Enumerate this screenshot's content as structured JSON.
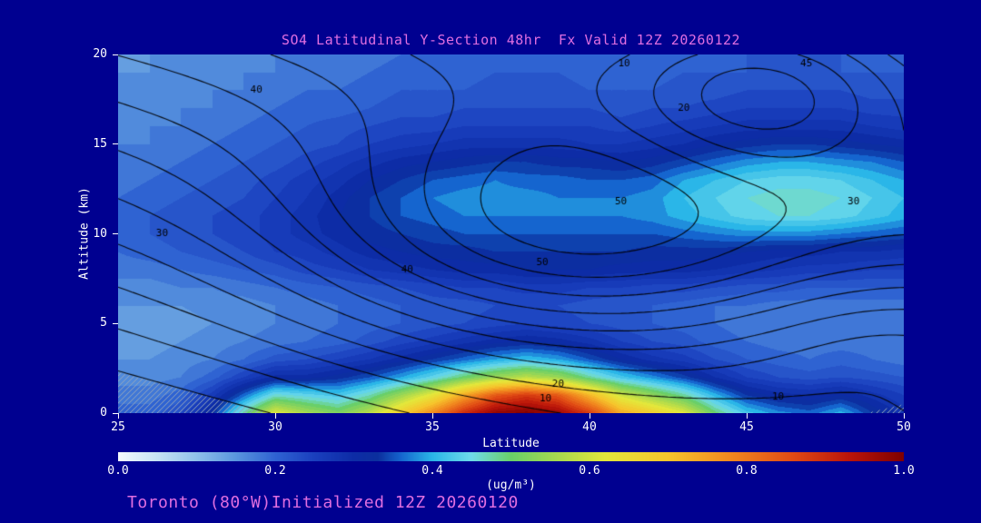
{
  "title": "SO4 Latitudinal Y-Section 48hr  Fx Valid 12Z 20260122",
  "footer": "Toronto (80°W)Initialized 12Z 20260120",
  "colors": {
    "background": "#000090",
    "title_text": "#e06ee0",
    "axis_text": "#ffffff",
    "contour_line": "#000000",
    "terrain_hatch": "#97a8bc"
  },
  "axes": {
    "x": {
      "label": "Latitude",
      "min": 25,
      "max": 50,
      "ticks": [
        25,
        30,
        35,
        40,
        45,
        50
      ]
    },
    "y": {
      "label": "Altitude (km)",
      "min": 0,
      "max": 20,
      "ticks": [
        0,
        5,
        10,
        15,
        20
      ]
    }
  },
  "colorbar": {
    "label": "(ug/m³)",
    "min": 0.0,
    "max": 1.0,
    "ticks": [
      "0.0",
      "0.2",
      "0.4",
      "0.6",
      "0.8",
      "1.0"
    ],
    "stops": [
      [
        0.0,
        "#f4fafe"
      ],
      [
        0.05,
        "#c6e2f4"
      ],
      [
        0.1,
        "#8fc1ea"
      ],
      [
        0.15,
        "#5a95de"
      ],
      [
        0.2,
        "#2f63d2"
      ],
      [
        0.25,
        "#1a3fbe"
      ],
      [
        0.3,
        "#0d2ca6"
      ],
      [
        0.33,
        "#0b2f9e"
      ],
      [
        0.36,
        "#1565cf"
      ],
      [
        0.4,
        "#2ab6e8"
      ],
      [
        0.45,
        "#6fdbea"
      ],
      [
        0.5,
        "#69cf69"
      ],
      [
        0.56,
        "#a7d94f"
      ],
      [
        0.62,
        "#e3e73b"
      ],
      [
        0.7,
        "#f6c52c"
      ],
      [
        0.78,
        "#f1881f"
      ],
      [
        0.86,
        "#e04914"
      ],
      [
        0.93,
        "#bb150a"
      ],
      [
        1.0,
        "#7f0000"
      ]
    ]
  },
  "terrain": {
    "polygons": [
      [
        [
          25,
          2.3
        ],
        [
          25,
          0
        ],
        [
          29.8,
          0
        ]
      ],
      [
        [
          48.8,
          0
        ],
        [
          50,
          0
        ],
        [
          50,
          0.5
        ]
      ]
    ]
  },
  "chart_data": {
    "type": "heatmap",
    "title": "SO4 Latitudinal Y-Section 48hr  Fx Valid 12Z 20260122",
    "xlabel": "Latitude",
    "ylabel": "Altitude (km)",
    "units": "ug/m3",
    "value_range": [
      0.0,
      1.0
    ],
    "x_lat": [
      25,
      26,
      27,
      28,
      29,
      30,
      31,
      32,
      33,
      34,
      35,
      36,
      37,
      38,
      39,
      40,
      41,
      42,
      43,
      44,
      45,
      46,
      47,
      48,
      49,
      50
    ],
    "y_alt_km": [
      0,
      1,
      2,
      3,
      4,
      5,
      6,
      7,
      8,
      9,
      10,
      11,
      12,
      13,
      14,
      15,
      16,
      17,
      18,
      19,
      20
    ],
    "so4_ug_m3": [
      [
        0.2,
        0.2,
        0.23,
        0.32,
        0.48,
        0.62,
        0.56,
        0.52,
        0.58,
        0.68,
        0.78,
        0.9,
        0.98,
        1.0,
        0.97,
        0.88,
        0.74,
        0.68,
        0.62,
        0.5,
        0.42,
        0.38,
        0.36,
        0.4,
        0.33,
        0.28
      ],
      [
        0.18,
        0.18,
        0.2,
        0.26,
        0.36,
        0.46,
        0.44,
        0.42,
        0.47,
        0.55,
        0.63,
        0.74,
        0.84,
        0.88,
        0.84,
        0.72,
        0.6,
        0.54,
        0.48,
        0.4,
        0.33,
        0.3,
        0.29,
        0.31,
        0.28,
        0.25
      ],
      [
        0.16,
        0.16,
        0.17,
        0.2,
        0.25,
        0.3,
        0.3,
        0.32,
        0.35,
        0.39,
        0.44,
        0.5,
        0.55,
        0.58,
        0.55,
        0.48,
        0.42,
        0.38,
        0.34,
        0.29,
        0.25,
        0.23,
        0.22,
        0.23,
        0.22,
        0.21
      ],
      [
        0.15,
        0.15,
        0.16,
        0.17,
        0.19,
        0.22,
        0.23,
        0.25,
        0.27,
        0.3,
        0.33,
        0.36,
        0.39,
        0.41,
        0.39,
        0.35,
        0.31,
        0.28,
        0.26,
        0.23,
        0.21,
        0.2,
        0.19,
        0.2,
        0.19,
        0.18
      ],
      [
        0.14,
        0.14,
        0.15,
        0.16,
        0.17,
        0.18,
        0.19,
        0.2,
        0.22,
        0.24,
        0.26,
        0.28,
        0.3,
        0.31,
        0.3,
        0.28,
        0.25,
        0.23,
        0.22,
        0.2,
        0.19,
        0.18,
        0.18,
        0.18,
        0.18,
        0.17
      ],
      [
        0.14,
        0.14,
        0.14,
        0.15,
        0.16,
        0.17,
        0.18,
        0.19,
        0.2,
        0.21,
        0.22,
        0.23,
        0.24,
        0.25,
        0.24,
        0.23,
        0.22,
        0.21,
        0.2,
        0.19,
        0.18,
        0.18,
        0.17,
        0.17,
        0.17,
        0.17
      ],
      [
        0.15,
        0.15,
        0.15,
        0.16,
        0.16,
        0.17,
        0.18,
        0.19,
        0.2,
        0.21,
        0.22,
        0.22,
        0.23,
        0.23,
        0.23,
        0.22,
        0.21,
        0.21,
        0.2,
        0.19,
        0.19,
        0.18,
        0.18,
        0.18,
        0.18,
        0.18
      ],
      [
        0.16,
        0.16,
        0.17,
        0.17,
        0.18,
        0.19,
        0.2,
        0.21,
        0.22,
        0.23,
        0.24,
        0.25,
        0.25,
        0.26,
        0.26,
        0.25,
        0.25,
        0.24,
        0.24,
        0.23,
        0.22,
        0.22,
        0.21,
        0.21,
        0.21,
        0.21
      ],
      [
        0.18,
        0.18,
        0.19,
        0.2,
        0.21,
        0.22,
        0.24,
        0.25,
        0.27,
        0.28,
        0.29,
        0.3,
        0.3,
        0.31,
        0.31,
        0.31,
        0.3,
        0.3,
        0.3,
        0.29,
        0.28,
        0.27,
        0.26,
        0.26,
        0.25,
        0.25
      ],
      [
        0.19,
        0.2,
        0.21,
        0.22,
        0.23,
        0.25,
        0.26,
        0.28,
        0.3,
        0.31,
        0.32,
        0.32,
        0.33,
        0.33,
        0.33,
        0.33,
        0.33,
        0.32,
        0.32,
        0.32,
        0.31,
        0.3,
        0.3,
        0.29,
        0.29,
        0.28
      ],
      [
        0.2,
        0.21,
        0.22,
        0.23,
        0.24,
        0.26,
        0.28,
        0.3,
        0.32,
        0.33,
        0.34,
        0.35,
        0.35,
        0.35,
        0.35,
        0.35,
        0.35,
        0.35,
        0.36,
        0.37,
        0.38,
        0.38,
        0.38,
        0.37,
        0.36,
        0.35
      ],
      [
        0.2,
        0.21,
        0.22,
        0.23,
        0.24,
        0.26,
        0.28,
        0.31,
        0.33,
        0.35,
        0.36,
        0.37,
        0.37,
        0.37,
        0.37,
        0.37,
        0.37,
        0.38,
        0.4,
        0.42,
        0.44,
        0.45,
        0.45,
        0.44,
        0.42,
        0.4
      ],
      [
        0.19,
        0.2,
        0.21,
        0.22,
        0.23,
        0.25,
        0.27,
        0.3,
        0.33,
        0.35,
        0.37,
        0.38,
        0.38,
        0.38,
        0.37,
        0.37,
        0.37,
        0.38,
        0.41,
        0.43,
        0.45,
        0.46,
        0.46,
        0.45,
        0.43,
        0.41
      ],
      [
        0.18,
        0.19,
        0.2,
        0.21,
        0.22,
        0.24,
        0.26,
        0.28,
        0.31,
        0.33,
        0.35,
        0.36,
        0.37,
        0.36,
        0.36,
        0.35,
        0.35,
        0.36,
        0.39,
        0.41,
        0.43,
        0.44,
        0.44,
        0.43,
        0.41,
        0.39
      ],
      [
        0.17,
        0.18,
        0.19,
        0.2,
        0.21,
        0.22,
        0.24,
        0.26,
        0.28,
        0.3,
        0.31,
        0.32,
        0.33,
        0.33,
        0.32,
        0.32,
        0.31,
        0.32,
        0.34,
        0.36,
        0.38,
        0.39,
        0.39,
        0.38,
        0.37,
        0.35
      ],
      [
        0.17,
        0.17,
        0.18,
        0.19,
        0.2,
        0.21,
        0.22,
        0.23,
        0.25,
        0.26,
        0.27,
        0.28,
        0.28,
        0.28,
        0.28,
        0.27,
        0.27,
        0.28,
        0.29,
        0.31,
        0.32,
        0.33,
        0.33,
        0.32,
        0.31,
        0.3
      ],
      [
        0.16,
        0.17,
        0.17,
        0.18,
        0.19,
        0.2,
        0.21,
        0.22,
        0.23,
        0.24,
        0.24,
        0.25,
        0.25,
        0.25,
        0.25,
        0.25,
        0.24,
        0.25,
        0.26,
        0.27,
        0.28,
        0.28,
        0.28,
        0.28,
        0.27,
        0.26
      ],
      [
        0.16,
        0.16,
        0.17,
        0.17,
        0.18,
        0.19,
        0.2,
        0.2,
        0.21,
        0.22,
        0.22,
        0.23,
        0.23,
        0.23,
        0.23,
        0.23,
        0.22,
        0.23,
        0.23,
        0.24,
        0.25,
        0.25,
        0.25,
        0.25,
        0.24,
        0.24
      ],
      [
        0.15,
        0.16,
        0.16,
        0.17,
        0.17,
        0.18,
        0.19,
        0.19,
        0.2,
        0.21,
        0.21,
        0.21,
        0.22,
        0.22,
        0.22,
        0.21,
        0.21,
        0.21,
        0.22,
        0.22,
        0.23,
        0.23,
        0.23,
        0.23,
        0.22,
        0.22
      ],
      [
        0.15,
        0.15,
        0.16,
        0.16,
        0.17,
        0.17,
        0.18,
        0.18,
        0.19,
        0.2,
        0.2,
        0.2,
        0.21,
        0.21,
        0.21,
        0.2,
        0.2,
        0.2,
        0.21,
        0.21,
        0.21,
        0.22,
        0.22,
        0.21,
        0.21,
        0.21
      ],
      [
        0.14,
        0.15,
        0.15,
        0.16,
        0.16,
        0.17,
        0.17,
        0.18,
        0.18,
        0.19,
        0.19,
        0.2,
        0.2,
        0.2,
        0.2,
        0.2,
        0.19,
        0.2,
        0.2,
        0.2,
        0.21,
        0.21,
        0.21,
        0.21,
        0.2,
        0.2
      ]
    ],
    "contour_overlay": {
      "levels": [
        5,
        10,
        15,
        20,
        25,
        30,
        35,
        40,
        45,
        50,
        55
      ],
      "labels": [
        {
          "text": "40",
          "lat": 29.4,
          "alt": 18.0
        },
        {
          "text": "30",
          "lat": 26.4,
          "alt": 10.0
        },
        {
          "text": "40",
          "lat": 34.2,
          "alt": 8.0
        },
        {
          "text": "50",
          "lat": 38.5,
          "alt": 8.4
        },
        {
          "text": "50",
          "lat": 41.0,
          "alt": 11.8
        },
        {
          "text": "20",
          "lat": 43.0,
          "alt": 17.0
        },
        {
          "text": "10",
          "lat": 41.1,
          "alt": 19.5
        },
        {
          "text": "45",
          "lat": 46.9,
          "alt": 19.5
        },
        {
          "text": "30",
          "lat": 48.4,
          "alt": 11.8
        },
        {
          "text": "20",
          "lat": 39.0,
          "alt": 1.6
        },
        {
          "text": "10",
          "lat": 38.6,
          "alt": 0.8
        },
        {
          "text": "10",
          "lat": 46.0,
          "alt": 0.9
        }
      ],
      "model": {
        "linear": {
          "alt_coef": 2.0,
          "lat_coef": 0.9,
          "lat0": 25
        },
        "gaussians": [
          {
            "a": 25,
            "lat": 39.0,
            "alt": 10.0,
            "slat": 8.0,
            "salt": 6.5
          },
          {
            "a": -20,
            "lat": 45.5,
            "alt": 18.0,
            "slat": 4.5,
            "salt": 4.5
          },
          {
            "a": -8,
            "lat": 50.0,
            "alt": 4.0,
            "slat": 5.0,
            "salt": 4.0
          }
        ]
      }
    }
  }
}
